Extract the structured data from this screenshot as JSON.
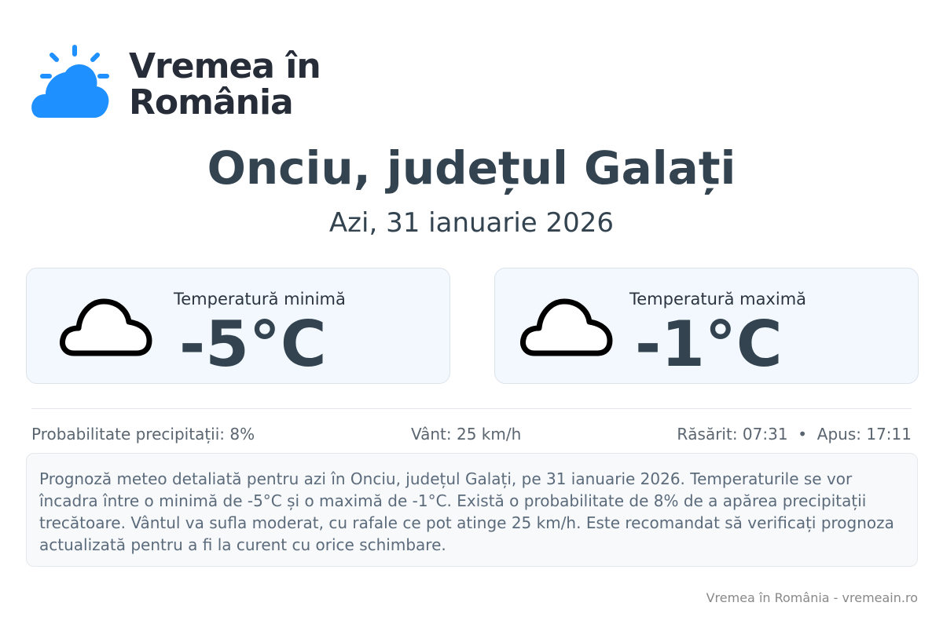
{
  "brand": {
    "line1": "Vremea în",
    "line2": "România",
    "color": "#1e90ff"
  },
  "header": {
    "title": "Onciu, județul Galați",
    "date": "Azi, 31 ianuarie 2026"
  },
  "cards": [
    {
      "label": "Temperatură minimă",
      "value": "-5°C",
      "icon": "cloud-icon"
    },
    {
      "label": "Temperatură maximă",
      "value": "-1°C",
      "icon": "cloud-icon"
    }
  ],
  "stats": {
    "precipitation": "Probabilitate precipitații: 8%",
    "wind": "Vânt: 25 km/h",
    "sun": "Răsărit: 07:31  •  Apus: 17:11"
  },
  "description": "Prognoză meteo detaliată pentru azi în Onciu, județul Galați, pe 31 ianuarie 2026. Temperaturile se vor încadra între o minimă de -5°C și o maximă de -1°C. Există o probabilitate de 8% de a apărea precipitații trecătoare. Vântul va sufla moderat, cu rafale ce pot atinge 25 km/h. Este recomandat să verificați prognoza actualizată pentru a fi la curent cu orice schimbare.",
  "footer": "Vremea în România - vremeain.ro"
}
